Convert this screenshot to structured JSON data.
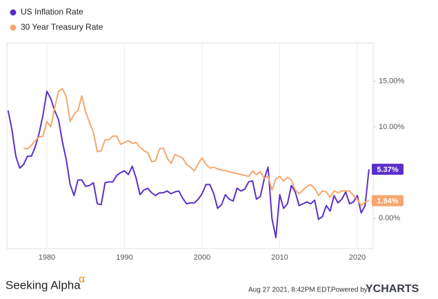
{
  "chart_data": {
    "type": "line",
    "x": [
      1975,
      1975.5,
      1976,
      1976.5,
      1977,
      1977.5,
      1978,
      1978.5,
      1979,
      1979.5,
      1980,
      1980.5,
      1981,
      1981.5,
      1982,
      1982.5,
      1983,
      1983.5,
      1984,
      1984.5,
      1985,
      1985.5,
      1986,
      1986.5,
      1987,
      1987.5,
      1988,
      1988.5,
      1989,
      1989.5,
      1990,
      1990.5,
      1991,
      1991.5,
      1992,
      1992.5,
      1993,
      1993.5,
      1994,
      1994.5,
      1995,
      1995.5,
      1996,
      1996.5,
      1997,
      1997.5,
      1998,
      1998.5,
      1999,
      1999.5,
      2000,
      2000.5,
      2001,
      2001.5,
      2002,
      2002.5,
      2003,
      2003.5,
      2004,
      2004.5,
      2005,
      2005.5,
      2006,
      2006.5,
      2007,
      2007.5,
      2008,
      2008.5,
      2009,
      2009.5,
      2010,
      2010.5,
      2011,
      2011.5,
      2012,
      2012.5,
      2013,
      2013.5,
      2014,
      2014.5,
      2015,
      2015.5,
      2016,
      2016.5,
      2017,
      2017.5,
      2018,
      2018.5,
      2019,
      2019.5,
      2020,
      2020.5,
      2021,
      2021.5
    ],
    "series": [
      {
        "name": "US Inflation Rate",
        "color": "#5b2fc9",
        "values": [
          11.8,
          9.7,
          6.8,
          5.5,
          5.9,
          6.8,
          6.8,
          7.8,
          9.3,
          11.3,
          13.9,
          13.1,
          11.8,
          10.8,
          8.4,
          6.4,
          3.7,
          2.5,
          4.2,
          4.2,
          3.5,
          3.6,
          3.9,
          1.6,
          1.5,
          3.9,
          4.0,
          4.0,
          4.7,
          5.0,
          5.2,
          4.8,
          5.7,
          4.4,
          2.6,
          3.1,
          3.3,
          2.8,
          2.5,
          2.8,
          2.8,
          3.0,
          2.7,
          2.9,
          3.0,
          2.2,
          1.6,
          1.7,
          1.7,
          2.1,
          2.7,
          3.7,
          3.7,
          2.7,
          1.1,
          1.5,
          2.6,
          2.1,
          1.9,
          3.3,
          3.0,
          3.2,
          4.0,
          4.1,
          2.1,
          2.4,
          4.3,
          5.6,
          0.0,
          -2.1,
          2.6,
          1.1,
          1.6,
          3.6,
          2.9,
          1.4,
          1.6,
          1.8,
          1.6,
          2.0,
          -0.1,
          0.2,
          1.4,
          0.8,
          2.5,
          1.7,
          2.1,
          2.9,
          1.6,
          1.8,
          2.5,
          0.6,
          1.4,
          5.37
        ],
        "value_labels": [
          null,
          null,
          null,
          null,
          null,
          null,
          null,
          null,
          null,
          null,
          null,
          null,
          null,
          null,
          null,
          null,
          null,
          null,
          null,
          null,
          null,
          null,
          null,
          null,
          null,
          null,
          null,
          null,
          null,
          null,
          null,
          null,
          null,
          null,
          null,
          null,
          null,
          null,
          null,
          null,
          null,
          null,
          null,
          null,
          null,
          null,
          null,
          null,
          null,
          null,
          null,
          null,
          null,
          null,
          null,
          null,
          null,
          null,
          null,
          null,
          null,
          null,
          null,
          null,
          null,
          null,
          null,
          null,
          null,
          null,
          null,
          null,
          null,
          null,
          null,
          null,
          null,
          null,
          null,
          null,
          null,
          null,
          null,
          null,
          null,
          null,
          null,
          null,
          null,
          null,
          null,
          null,
          null,
          "5.37%"
        ]
      },
      {
        "name": "30 Year Treasury Rate",
        "color": "#f6a66e",
        "values": [
          null,
          null,
          null,
          null,
          7.7,
          7.6,
          8.0,
          8.5,
          8.9,
          9.0,
          10.6,
          10.0,
          12.1,
          13.9,
          14.2,
          13.3,
          10.6,
          11.4,
          11.8,
          13.4,
          11.6,
          10.5,
          9.4,
          7.3,
          7.4,
          8.6,
          8.6,
          9.0,
          9.0,
          8.1,
          8.3,
          8.5,
          8.2,
          8.3,
          7.8,
          7.4,
          7.2,
          6.2,
          6.3,
          7.6,
          7.7,
          6.6,
          6.0,
          7.0,
          6.8,
          6.6,
          5.9,
          5.6,
          5.2,
          6.0,
          6.6,
          5.9,
          5.5,
          5.6,
          5.4,
          5.3,
          5.2,
          5.1,
          5.0,
          4.9,
          4.8,
          4.7,
          4.6,
          5.2,
          4.8,
          5.1,
          4.4,
          4.6,
          3.1,
          4.3,
          4.6,
          4.1,
          4.5,
          4.2,
          3.1,
          2.7,
          3.1,
          3.5,
          3.7,
          3.3,
          2.5,
          3.0,
          2.9,
          2.3,
          3.0,
          2.8,
          3.0,
          3.0,
          3.0,
          2.5,
          2.1,
          1.4,
          1.8,
          1.94
        ],
        "value_labels": [
          null,
          null,
          null,
          null,
          null,
          null,
          null,
          null,
          null,
          null,
          null,
          null,
          null,
          null,
          null,
          null,
          null,
          null,
          null,
          null,
          null,
          null,
          null,
          null,
          null,
          null,
          null,
          null,
          null,
          null,
          null,
          null,
          null,
          null,
          null,
          null,
          null,
          null,
          null,
          null,
          null,
          null,
          null,
          null,
          null,
          null,
          null,
          null,
          null,
          null,
          null,
          null,
          null,
          null,
          null,
          null,
          null,
          null,
          null,
          null,
          null,
          null,
          null,
          null,
          null,
          null,
          null,
          null,
          null,
          null,
          null,
          null,
          null,
          null,
          null,
          null,
          null,
          null,
          null,
          null,
          null,
          null,
          null,
          null,
          null,
          null,
          null,
          null,
          null,
          null,
          null,
          null,
          null,
          "1.94%"
        ]
      }
    ],
    "xlim": [
      1974.85,
      2022.04
    ],
    "xticks": [
      1980,
      1990,
      2000,
      2010,
      2020
    ],
    "ylim": [
      -3.3,
      19.2
    ],
    "yticks": [
      {
        "value": 0,
        "label": "0.00%"
      },
      {
        "value": 10,
        "label": "10.00%"
      },
      {
        "value": 15,
        "label": "15.00%"
      }
    ],
    "grid": true,
    "legend": "top-left"
  },
  "footer": {
    "brand": "Seeking Alpha",
    "brand_mark": "α",
    "timestamp": "Aug 27 2021, 8:42PM EDT.",
    "powered_by": "Powered by",
    "provider": "YCHARTS"
  }
}
